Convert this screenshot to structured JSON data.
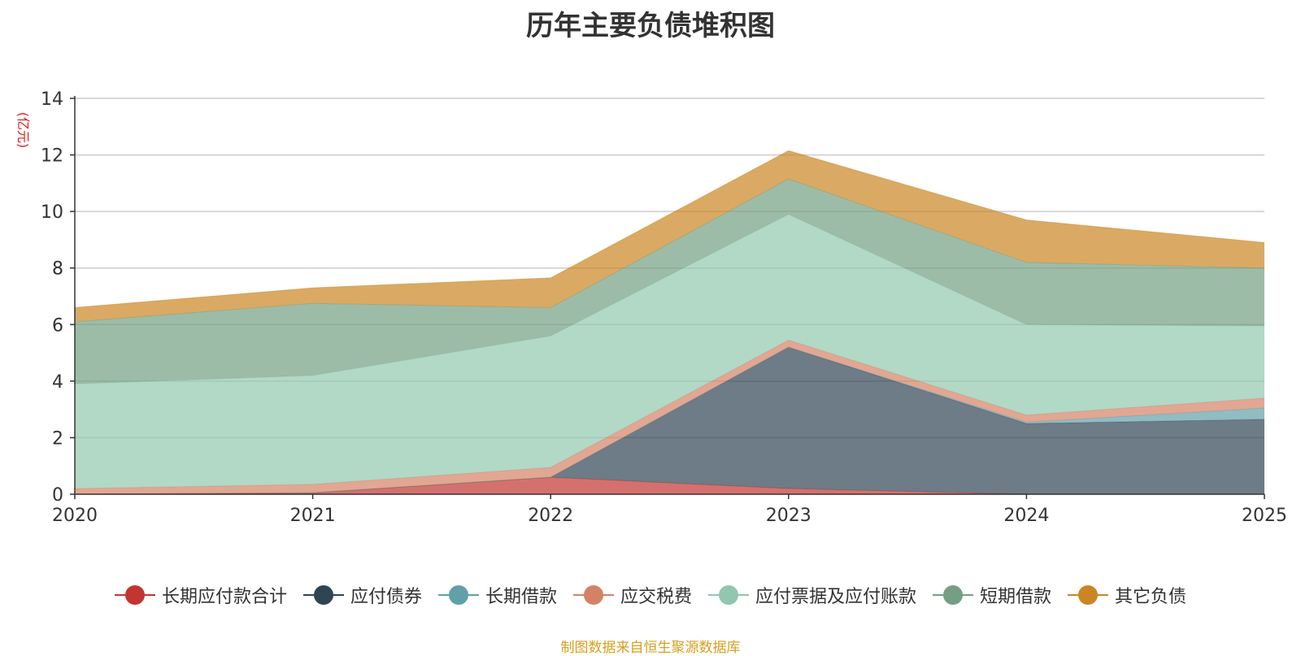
{
  "chart_data": {
    "type": "area",
    "stacked": true,
    "title": "历年主要负债堆积图",
    "unit": "(亿元)",
    "categories": [
      "2020",
      "2021",
      "2022",
      "2023",
      "2024",
      "2025"
    ],
    "ylim": [
      0,
      14
    ],
    "yticks": [
      0,
      2,
      4,
      6,
      8,
      10,
      12,
      14
    ],
    "ytick_labels": [
      "0",
      "2",
      "4",
      "6",
      "8",
      "10",
      "12",
      "14"
    ],
    "grid": true,
    "legend_position": "bottom",
    "series": [
      {
        "name": "长期应付款合计",
        "color": "#c23531",
        "values": [
          0.0,
          0.05,
          0.6,
          0.2,
          0.0,
          0.0
        ]
      },
      {
        "name": "应付债券",
        "color": "#2f4554",
        "values": [
          0.0,
          0.0,
          0.0,
          5.0,
          2.5,
          2.65
        ]
      },
      {
        "name": "长期借款",
        "color": "#61a0a8",
        "values": [
          0.0,
          0.0,
          0.0,
          0.0,
          0.05,
          0.4
        ]
      },
      {
        "name": "应交税费",
        "color": "#d48265",
        "values": [
          0.2,
          0.3,
          0.35,
          0.25,
          0.25,
          0.35
        ]
      },
      {
        "name": "应付票据及应付账款",
        "color": "#91c7ae",
        "values": [
          3.7,
          3.85,
          4.65,
          4.45,
          3.2,
          2.55
        ]
      },
      {
        "name": "短期借款",
        "color": "#749f83",
        "values": [
          2.2,
          2.55,
          1.0,
          1.25,
          2.2,
          2.05
        ]
      },
      {
        "name": "其它负债",
        "color": "#ca8622",
        "values": [
          0.5,
          0.55,
          1.05,
          1.0,
          1.5,
          0.9
        ]
      }
    ]
  },
  "source": "制图数据来自恒生聚源数据库"
}
